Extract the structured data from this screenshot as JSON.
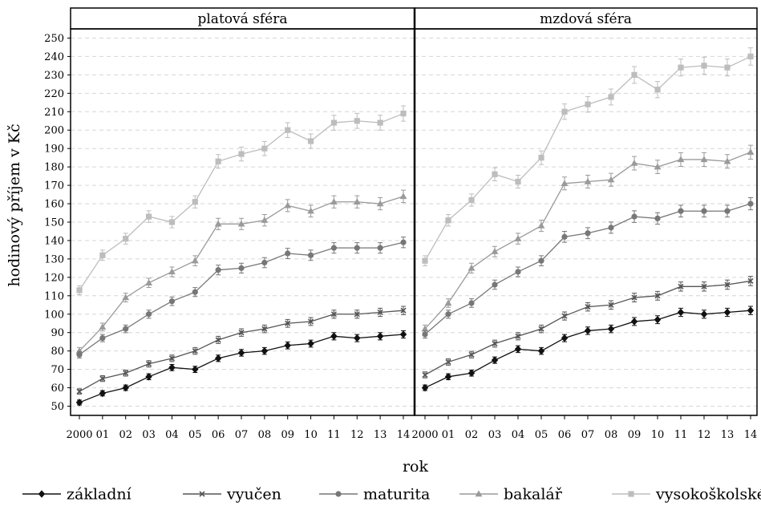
{
  "chart_data": {
    "type": "line",
    "facets": [
      "platová sféra",
      "mzdová sféra"
    ],
    "x": [
      "2000",
      "01",
      "02",
      "03",
      "04",
      "05",
      "06",
      "07",
      "08",
      "09",
      "10",
      "11",
      "12",
      "13",
      "14"
    ],
    "xlabel": "rok",
    "ylabel": "hodinový příjem v Kč",
    "ylim": [
      45,
      255
    ],
    "yticks": [
      50,
      60,
      70,
      80,
      90,
      100,
      110,
      120,
      130,
      140,
      150,
      160,
      170,
      180,
      190,
      200,
      210,
      220,
      230,
      240,
      250
    ],
    "grid": "horizontal dashed",
    "legend": "bottom",
    "series": [
      {
        "name": "základní",
        "color": "#111111",
        "marker": "diamond",
        "values": {
          "platová sféra": [
            52,
            57,
            60,
            66,
            71,
            70,
            76,
            79,
            80,
            83,
            84,
            88,
            87,
            88,
            89
          ],
          "mzdová sféra": [
            60,
            66,
            68,
            75,
            81,
            80,
            87,
            91,
            92,
            96,
            97,
            101,
            100,
            101,
            102
          ]
        }
      },
      {
        "name": "vyučen",
        "color": "#555555",
        "marker": "cross",
        "values": {
          "platová sféra": [
            58,
            65,
            68,
            73,
            76,
            80,
            86,
            90,
            92,
            95,
            96,
            100,
            100,
            101,
            102
          ],
          "mzdová sféra": [
            67,
            74,
            78,
            84,
            88,
            92,
            99,
            104,
            105,
            109,
            110,
            115,
            115,
            116,
            118
          ]
        }
      },
      {
        "name": "maturita",
        "color": "#777777",
        "marker": "circle",
        "values": {
          "platová sféra": [
            78,
            87,
            92,
            100,
            107,
            112,
            124,
            125,
            128,
            133,
            132,
            136,
            136,
            136,
            139
          ],
          "mzdová sféra": [
            89,
            100,
            106,
            116,
            123,
            129,
            142,
            144,
            147,
            153,
            152,
            156,
            156,
            156,
            160
          ]
        }
      },
      {
        "name": "bakalář",
        "color": "#9a9a9a",
        "marker": "triangle",
        "values": {
          "platová sféra": [
            80,
            93,
            109,
            117,
            123,
            129,
            149,
            149,
            151,
            159,
            156,
            161,
            161,
            160,
            164
          ],
          "mzdová sféra": [
            92,
            106,
            125,
            134,
            141,
            148,
            171,
            172,
            173,
            182,
            180,
            184,
            184,
            183,
            188
          ]
        }
      },
      {
        "name": "vysokoškolské",
        "color": "#bdbdbd",
        "marker": "square",
        "values": {
          "platová sféra": [
            113,
            132,
            141,
            153,
            150,
            161,
            183,
            187,
            190,
            200,
            194,
            204,
            205,
            204,
            209
          ],
          "mzdová sféra": [
            129,
            151,
            162,
            176,
            172,
            185,
            210,
            214,
            218,
            230,
            222,
            234,
            235,
            234,
            240
          ]
        }
      }
    ]
  }
}
